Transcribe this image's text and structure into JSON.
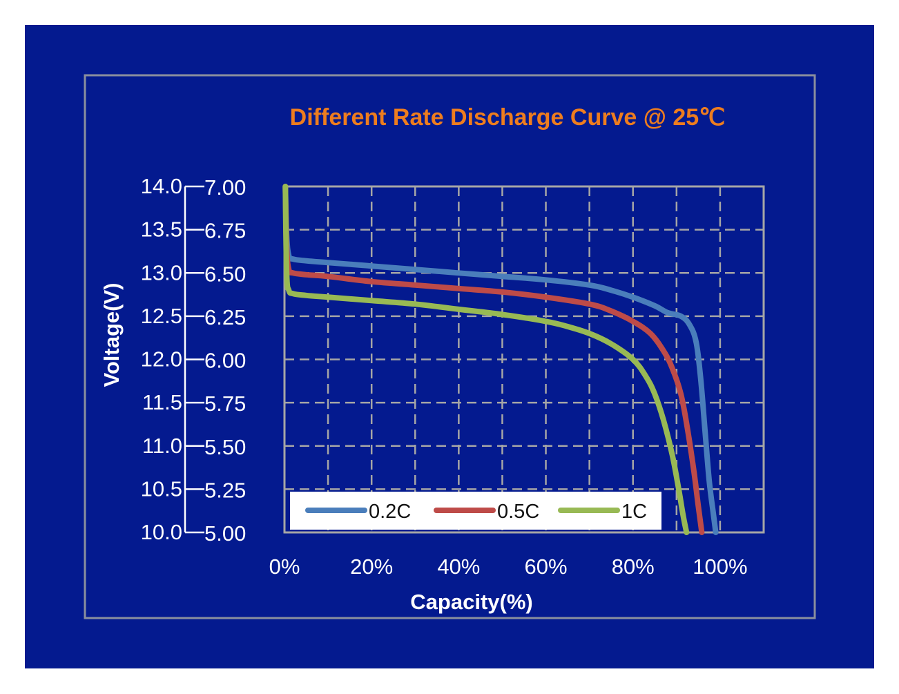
{
  "colors": {
    "background": "#041a8f",
    "frame": "#8a8f9e",
    "title": "#ee7d1e",
    "text": "#ffffff",
    "grid": "#a6a6a6",
    "legend_bg": "#ffffff",
    "legend_text": "#111111"
  },
  "chart_data": {
    "type": "line",
    "title": "Different Rate Discharge Curve @ 25℃",
    "xlabel": "Capacity(%)",
    "ylabel": "Voltage(V)",
    "xlim": [
      0,
      110
    ],
    "ylim": [
      5.0,
      7.0
    ],
    "ylim_secondary": [
      10.0,
      14.0
    ],
    "x_ticks": [
      "0%",
      "20%",
      "40%",
      "60%",
      "80%",
      "100%"
    ],
    "y_ticks": [
      "7.00",
      "6.75",
      "6.50",
      "6.25",
      "6.00",
      "5.75",
      "5.50",
      "5.25",
      "5.00"
    ],
    "y_ticks_secondary": [
      "14.0",
      "13.5",
      "13.0",
      "12.5",
      "12.0",
      "11.5",
      "11.0",
      "10.5",
      "10.0"
    ],
    "grid": true,
    "legend_position": "bottom-left-inside",
    "series": [
      {
        "name": "0.2C",
        "color": "#4a7ebb",
        "points": [
          [
            0.2,
            7.0
          ],
          [
            0.5,
            6.72
          ],
          [
            1,
            6.6
          ],
          [
            2,
            6.58
          ],
          [
            5,
            6.57
          ],
          [
            10,
            6.56
          ],
          [
            20,
            6.54
          ],
          [
            30,
            6.52
          ],
          [
            40,
            6.5
          ],
          [
            50,
            6.48
          ],
          [
            60,
            6.46
          ],
          [
            70,
            6.43
          ],
          [
            75,
            6.4
          ],
          [
            80,
            6.36
          ],
          [
            85,
            6.31
          ],
          [
            88,
            6.27
          ],
          [
            91,
            6.25
          ],
          [
            93,
            6.2
          ],
          [
            94.5,
            6.1
          ],
          [
            95.5,
            5.9
          ],
          [
            96.5,
            5.6
          ],
          [
            97.5,
            5.3
          ],
          [
            98.5,
            5.1
          ],
          [
            99,
            5.0
          ]
        ]
      },
      {
        "name": "0.5C",
        "color": "#be4b48",
        "points": [
          [
            0.2,
            7.0
          ],
          [
            0.5,
            6.65
          ],
          [
            1,
            6.52
          ],
          [
            2,
            6.5
          ],
          [
            5,
            6.49
          ],
          [
            10,
            6.48
          ],
          [
            20,
            6.45
          ],
          [
            30,
            6.43
          ],
          [
            40,
            6.41
          ],
          [
            50,
            6.39
          ],
          [
            60,
            6.36
          ],
          [
            70,
            6.32
          ],
          [
            75,
            6.28
          ],
          [
            80,
            6.22
          ],
          [
            84,
            6.15
          ],
          [
            87,
            6.05
          ],
          [
            89,
            5.95
          ],
          [
            91,
            5.8
          ],
          [
            92.5,
            5.6
          ],
          [
            94,
            5.35
          ],
          [
            95,
            5.15
          ],
          [
            95.8,
            5.0
          ]
        ]
      },
      {
        "name": "1C",
        "color": "#98b954",
        "points": [
          [
            0.2,
            7.0
          ],
          [
            0.5,
            6.5
          ],
          [
            1,
            6.4
          ],
          [
            2,
            6.38
          ],
          [
            5,
            6.37
          ],
          [
            10,
            6.36
          ],
          [
            20,
            6.34
          ],
          [
            30,
            6.32
          ],
          [
            40,
            6.29
          ],
          [
            50,
            6.26
          ],
          [
            60,
            6.22
          ],
          [
            65,
            6.19
          ],
          [
            70,
            6.15
          ],
          [
            75,
            6.09
          ],
          [
            80,
            6.0
          ],
          [
            83,
            5.9
          ],
          [
            85,
            5.8
          ],
          [
            87,
            5.65
          ],
          [
            89,
            5.45
          ],
          [
            90.5,
            5.25
          ],
          [
            91.5,
            5.1
          ],
          [
            92.3,
            5.0
          ]
        ]
      }
    ]
  }
}
